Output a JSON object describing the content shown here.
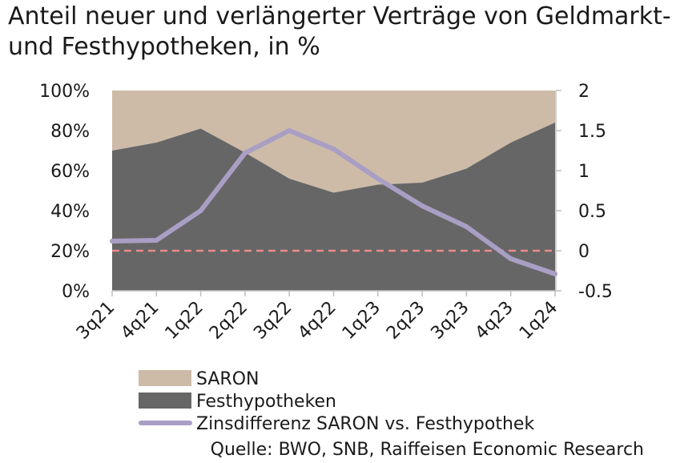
{
  "chart_data": {
    "type": "area",
    "title": "Anteil neuer und verlängerter Verträge von Geldmarkt- und Festhypotheken, in %",
    "categories": [
      "3q21",
      "4q21",
      "1q22",
      "2q22",
      "3q22",
      "4q22",
      "1q23",
      "2q23",
      "3q23",
      "4q23",
      "1q24"
    ],
    "series": [
      {
        "name": "SARON",
        "axis": "left",
        "kind": "area-stack-top",
        "color": "#cdbba8",
        "values": [
          30,
          26,
          19,
          31,
          44,
          51,
          47,
          46,
          39,
          26,
          16
        ]
      },
      {
        "name": "Festhypotheken",
        "axis": "left",
        "kind": "area",
        "color": "#666666",
        "values": [
          70,
          74,
          81,
          69,
          56,
          49,
          53,
          54,
          61,
          74,
          84
        ]
      },
      {
        "name": "Zinsdifferenz SARON vs. Festhypothek",
        "axis": "right",
        "kind": "line",
        "color": "#a99ec4",
        "values": [
          0.12,
          0.13,
          0.5,
          1.22,
          1.5,
          1.27,
          0.9,
          0.56,
          0.3,
          -0.1,
          -0.29
        ]
      }
    ],
    "left_axis": {
      "ylim": [
        0,
        100
      ],
      "ticks": [
        0,
        20,
        40,
        60,
        80,
        100
      ],
      "tick_labels": [
        "0%",
        "20%",
        "40%",
        "60%",
        "80%",
        "100%"
      ]
    },
    "right_axis": {
      "ylim": [
        -0.5,
        2
      ],
      "ticks": [
        -0.5,
        0,
        0.5,
        1,
        1.5,
        2
      ],
      "tick_labels": [
        "-0.5",
        "0",
        "0.5",
        "1",
        "1.5",
        "2"
      ]
    },
    "reference_line": {
      "axis": "right",
      "value": 0,
      "style": "dashed",
      "color": "#ea8a8a"
    },
    "legend": [
      {
        "label": "SARON",
        "swatch": "box",
        "color": "#cdbba8"
      },
      {
        "label": "Festhypotheken",
        "swatch": "box",
        "color": "#666666"
      },
      {
        "label": "Zinsdifferenz SARON vs. Festhypothek",
        "swatch": "line",
        "color": "#a99ec4"
      }
    ],
    "legend_position": "bottom",
    "grid": false,
    "source": "Quelle: BWO, SNB, Raiffeisen Economic Research"
  }
}
